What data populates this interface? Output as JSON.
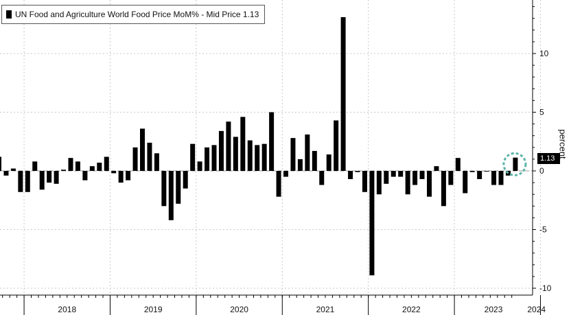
{
  "chart_data": {
    "type": "bar",
    "title": "",
    "legend": {
      "label": "UN Food and Agriculture World Food Price MoM% - Mid Price 1.13",
      "placement": "top-left"
    },
    "xlabel": "",
    "ylabel": "percent",
    "ylim": [
      -10,
      14
    ],
    "yticks": [
      -10,
      -5,
      0,
      5,
      10
    ],
    "grid": true,
    "bar_color": "#000000",
    "last_value_label": "1.13",
    "highlight_last_bar": true,
    "highlight_color": "#5bb5a8",
    "year_labels": [
      "2018",
      "2019",
      "2020",
      "2021",
      "2022",
      "2023",
      "2024"
    ],
    "x_start": "2017-09",
    "x_end": "2024-02",
    "series": [
      {
        "values": [
          1.2,
          -0.4,
          0.2,
          -1.8,
          -1.8,
          0.8,
          -1.6,
          -1.0,
          -1.1,
          0.1,
          1.1,
          0.8,
          -0.8,
          0.4,
          0.7,
          1.2,
          -0.2,
          -1.0,
          -0.8,
          2.0,
          3.6,
          2.4,
          1.5,
          -3.0,
          -4.2,
          -2.8,
          -1.5,
          2.3,
          0.8,
          2.0,
          2.2,
          3.4,
          4.2,
          2.9,
          4.6,
          2.6,
          2.2,
          2.3,
          5.0,
          -2.2,
          -0.5,
          2.8,
          1.0,
          3.1,
          1.7,
          -1.2,
          1.4,
          4.3,
          13.1,
          -0.7,
          -0.1,
          -1.8,
          -8.9,
          -2.0,
          -1.1,
          -0.5,
          -0.5,
          -2.0,
          -1.2,
          -0.7,
          -2.2,
          0.4,
          -3.0,
          -1.2,
          1.1,
          -1.9,
          -0.1,
          -0.7,
          0.0,
          -1.2,
          -1.2,
          -0.4,
          1.13
        ]
      }
    ]
  }
}
